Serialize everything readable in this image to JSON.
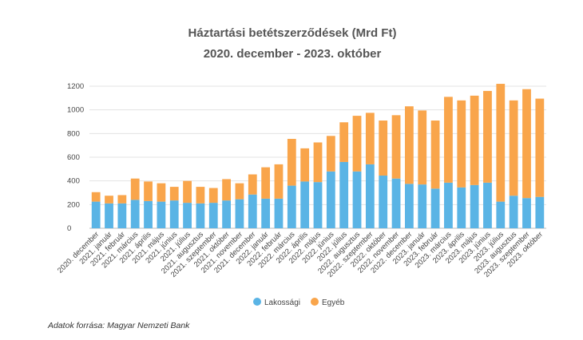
{
  "source_text": "Adatok forrása: Magyar Nemzeti Bank",
  "chart_data": {
    "type": "bar",
    "stacked": true,
    "title": "Háztartási betétszerződések (Mrd Ft)",
    "subtitle": "2020. december - 2023. október",
    "xlabel": "",
    "ylabel": "",
    "ylim": [
      0,
      1200
    ],
    "yticks": [
      0,
      200,
      400,
      600,
      800,
      1000,
      1200
    ],
    "grid": true,
    "legend_position": "bottom",
    "categories": [
      "2020. december",
      "2021. január",
      "2021. február",
      "2021. március",
      "2021. április",
      "2021. május",
      "2021. június",
      "2021. július",
      "2021. augusztus",
      "2021. szeptember",
      "2021. október",
      "2021. november",
      "2021. december",
      "2022. január",
      "2022. február",
      "2022. március",
      "2022. április",
      "2022. május",
      "2022. június",
      "2022. július",
      "2022. augusztus",
      "2022. szeptember",
      "2022. október",
      "2022. november",
      "2022. december",
      "2023. január",
      "2023. február",
      "2023. március",
      "2023. április",
      "2023. május",
      "2023. június",
      "2023. július",
      "2023. augusztus",
      "2023. szeptember",
      "2023. október"
    ],
    "series": [
      {
        "name": "Lakossági",
        "color": "#5ab4e5",
        "values": [
          225,
          210,
          210,
          240,
          230,
          225,
          235,
          215,
          210,
          215,
          235,
          245,
          285,
          250,
          250,
          360,
          395,
          390,
          480,
          560,
          480,
          540,
          445,
          420,
          375,
          370,
          335,
          385,
          345,
          365,
          385,
          225,
          275,
          255,
          265
        ]
      },
      {
        "name": "Egyéb",
        "color": "#f9a54b",
        "values": [
          80,
          65,
          70,
          180,
          165,
          155,
          115,
          185,
          140,
          125,
          180,
          135,
          170,
          265,
          290,
          395,
          280,
          335,
          300,
          335,
          470,
          435,
          465,
          535,
          655,
          625,
          575,
          725,
          735,
          755,
          775,
          995,
          805,
          920,
          830
        ]
      }
    ]
  }
}
